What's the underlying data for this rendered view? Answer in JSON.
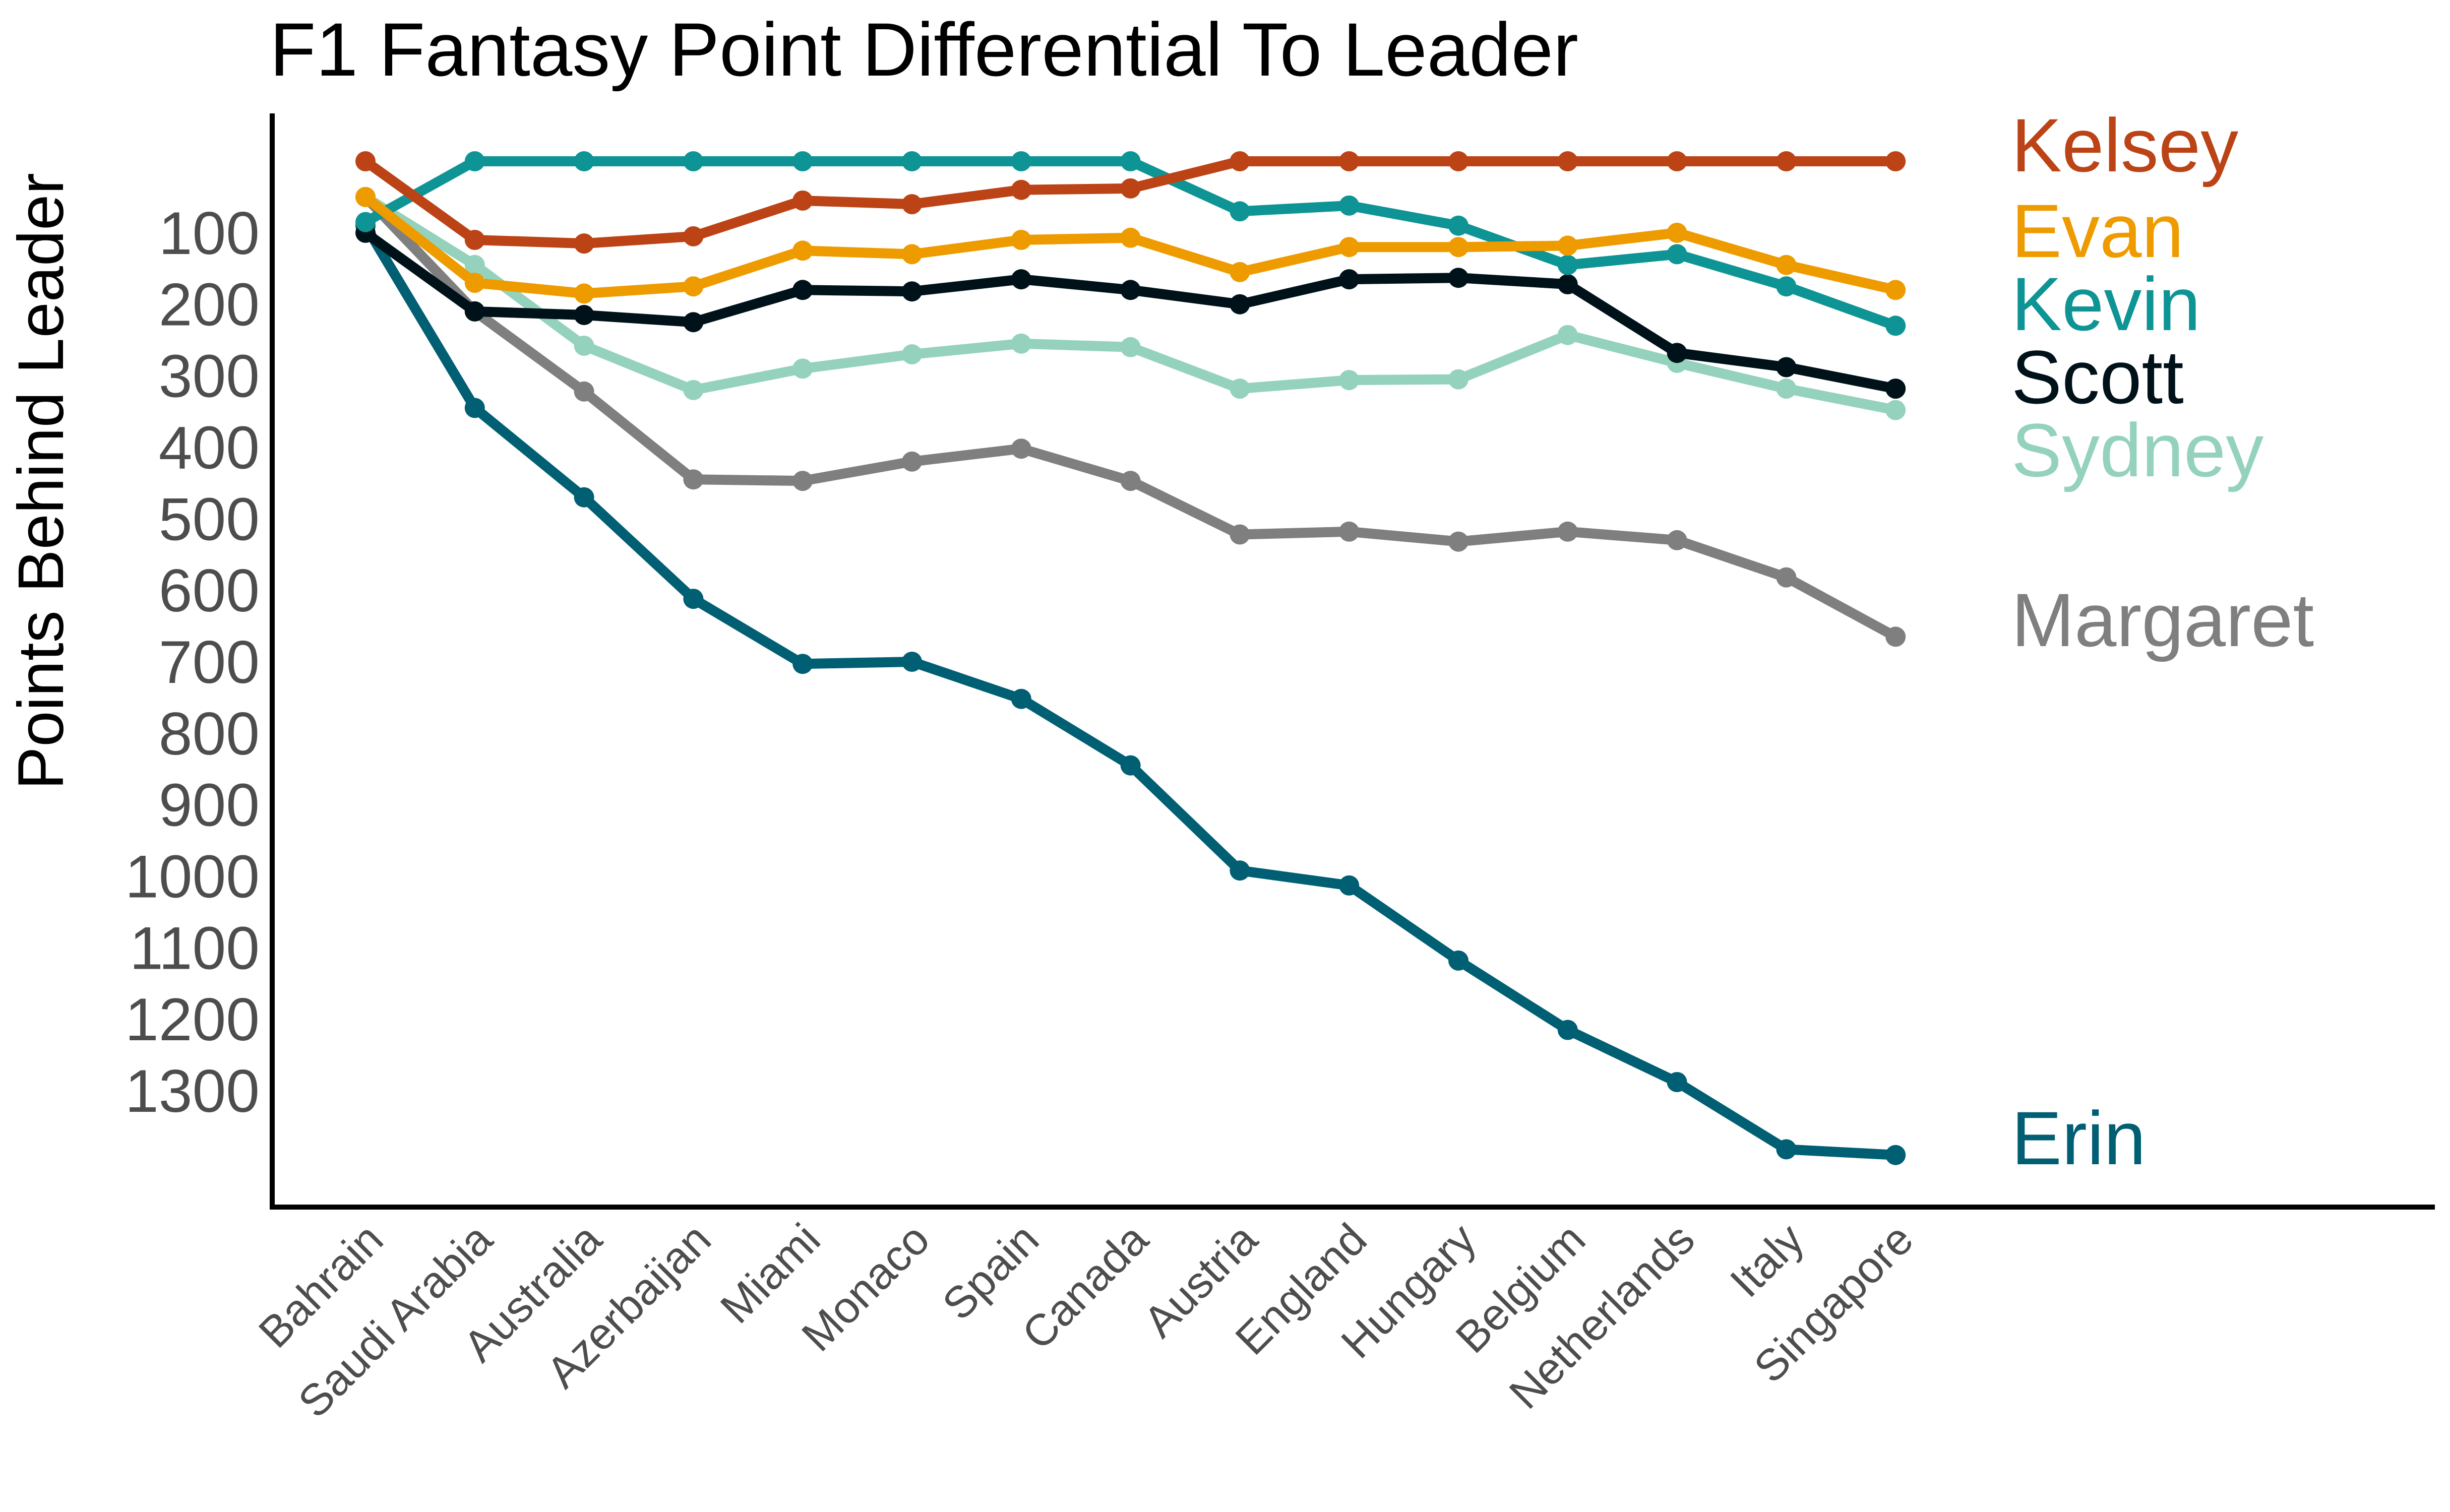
{
  "chart_data": {
    "type": "line",
    "title": "F1 Fantasy Point Differential To Leader",
    "xlabel": "",
    "ylabel": "Points Behind Leader",
    "y_reversed": true,
    "ylim": [
      0,
      1420
    ],
    "yticks": [
      100,
      200,
      300,
      400,
      500,
      600,
      700,
      800,
      900,
      1000,
      1100,
      1200,
      1300
    ],
    "ytick_labels": [
      "100",
      "200",
      "300",
      "400",
      "500",
      "600",
      "700",
      "800",
      "900",
      "1000",
      "1100",
      "1200",
      "1300"
    ],
    "grid": false,
    "legend": "direct labels at right end of each line",
    "categories": [
      "Bahrain",
      "Saudi Arabia",
      "Australia",
      "Azerbaijan",
      "Miami",
      "Monaco",
      "Spain",
      "Canada",
      "Austria",
      "England",
      "Hungary",
      "Belgium",
      "Netherlands",
      "Italy",
      "Singapore"
    ],
    "series": [
      {
        "name": "Kelsey",
        "color": "#BB4316",
        "values": [
          0,
          110,
          115,
          105,
          55,
          60,
          40,
          38,
          0,
          0,
          0,
          0,
          0,
          0,
          0
        ]
      },
      {
        "name": "Evan",
        "color": "#EE9B00",
        "values": [
          50,
          170,
          185,
          175,
          125,
          130,
          110,
          107,
          155,
          120,
          120,
          118,
          100,
          145,
          180
        ]
      },
      {
        "name": "Kevin",
        "color": "#0E9494",
        "values": [
          85,
          0,
          0,
          0,
          0,
          0,
          0,
          0,
          70,
          62,
          90,
          145,
          130,
          175,
          230
        ]
      },
      {
        "name": "Scott",
        "color": "#001219",
        "values": [
          100,
          210,
          215,
          225,
          180,
          182,
          165,
          180,
          200,
          165,
          163,
          172,
          268,
          288,
          318
        ]
      },
      {
        "name": "Sydney",
        "color": "#94D2BD",
        "values": [
          50,
          145,
          258,
          320,
          290,
          270,
          255,
          260,
          318,
          306,
          305,
          243,
          282,
          318,
          348
        ]
      },
      {
        "name": "Margaret",
        "color": "#7F7F7F",
        "values": [
          50,
          210,
          322,
          445,
          447,
          420,
          402,
          447,
          522,
          518,
          532,
          518,
          530,
          582,
          665
        ]
      },
      {
        "name": "Erin",
        "color": "#005F73",
        "values": [
          90,
          345,
          470,
          612,
          703,
          700,
          752,
          845,
          992,
          1013,
          1118,
          1215,
          1288,
          1382,
          1390
        ]
      }
    ]
  }
}
